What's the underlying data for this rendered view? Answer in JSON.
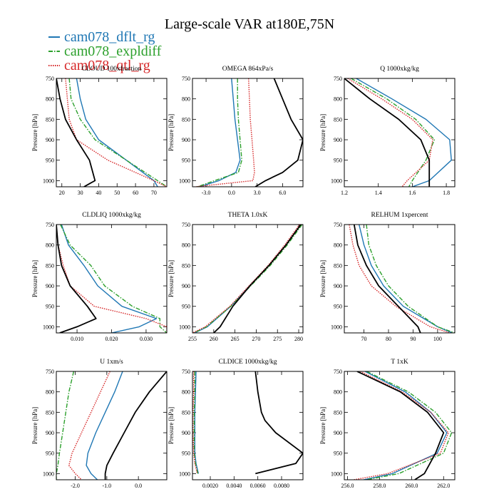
{
  "figure": {
    "title": "Large-scale VAR at180E,75N",
    "legend": [
      {
        "name": "cam078_dflt_rg",
        "color": "#1f77b4",
        "dash": "solid"
      },
      {
        "name": "cam078_expldiff",
        "color": "#2ca02c",
        "dash": "dashdot"
      },
      {
        "name": "cam078_qtl_rg",
        "color": "#d62728",
        "dash": "dotted"
      }
    ],
    "obs_color": "#000000"
  },
  "chart_data": [
    {
      "type": "line",
      "title": "CLOUD 100xfraction",
      "ylabel": "Pressure [hPa]",
      "xlim": [
        17,
        77
      ],
      "ylim": [
        750,
        1015
      ],
      "xticks": [
        20,
        30,
        40,
        50,
        60,
        70
      ],
      "xtick_labels": [
        "20",
        "30",
        "40",
        "50",
        "60",
        "70"
      ],
      "yticks": [
        750,
        800,
        850,
        900,
        950,
        1000
      ],
      "y": [
        750,
        800,
        850,
        900,
        950,
        1000,
        1015
      ],
      "series": [
        {
          "name": "cam078_dflt_rg",
          "x": [
            28,
            30,
            33,
            40,
            55,
            70,
            72
          ]
        },
        {
          "name": "cam078_expldiff",
          "x": [
            24,
            25,
            30,
            38,
            55,
            72,
            77
          ]
        },
        {
          "name": "cam078_qtl_rg",
          "x": [
            22,
            23,
            24,
            28,
            45,
            70,
            77
          ]
        },
        {
          "name": "obs",
          "x": [
            17,
            19,
            22,
            28,
            35,
            38,
            32
          ]
        }
      ]
    },
    {
      "type": "line",
      "title": "OMEGA 864xPa/s",
      "ylabel": "Pressure [hPa]",
      "xlim": [
        -4.6,
        8.4
      ],
      "ylim": [
        750,
        1015
      ],
      "xticks": [
        -3.0,
        0.0,
        3.0,
        6.0
      ],
      "xtick_labels": [
        "-3.0",
        "0.0",
        "3.0",
        "6.0"
      ],
      "yticks": [
        750,
        800,
        850,
        900,
        950,
        1000
      ],
      "y": [
        750,
        800,
        850,
        900,
        950,
        980,
        1000,
        1015
      ],
      "series": [
        {
          "name": "cam078_dflt_rg",
          "x": [
            0.0,
            0.2,
            0.4,
            0.7,
            1.0,
            0.5,
            -1.5,
            -3.8
          ]
        },
        {
          "name": "cam078_expldiff",
          "x": [
            0.7,
            0.7,
            0.8,
            1.0,
            1.2,
            0.8,
            -2.0,
            -4.0
          ]
        },
        {
          "name": "cam078_qtl_rg",
          "x": [
            2.0,
            2.1,
            2.2,
            2.4,
            2.6,
            2.7,
            2.5,
            -4.3
          ]
        },
        {
          "name": "obs",
          "x": [
            5.0,
            6.0,
            7.0,
            8.4,
            7.8,
            6.0,
            4.0,
            2.8
          ]
        }
      ]
    },
    {
      "type": "line",
      "title": "Q 1000xkg/kg",
      "ylabel": "Pressure [hPa]",
      "xlim": [
        1.2,
        1.85
      ],
      "ylim": [
        750,
        1015
      ],
      "xticks": [
        1.2,
        1.4,
        1.6,
        1.8
      ],
      "xtick_labels": [
        "1.2",
        "1.4",
        "1.6",
        "1.8"
      ],
      "yticks": [
        750,
        800,
        850,
        900,
        950,
        1000
      ],
      "y": [
        750,
        800,
        850,
        900,
        950,
        1000,
        1015
      ],
      "series": [
        {
          "name": "cam078_dflt_rg",
          "x": [
            1.27,
            1.48,
            1.68,
            1.82,
            1.83,
            1.7,
            1.6
          ]
        },
        {
          "name": "cam078_expldiff",
          "x": [
            1.24,
            1.45,
            1.62,
            1.73,
            1.68,
            1.6,
            1.58
          ]
        },
        {
          "name": "cam078_qtl_rg",
          "x": [
            1.22,
            1.42,
            1.6,
            1.72,
            1.7,
            1.57,
            1.54
          ]
        },
        {
          "name": "obs",
          "x": [
            1.2,
            1.35,
            1.52,
            1.65,
            1.7,
            1.7,
            1.7
          ]
        }
      ]
    },
    {
      "type": "line",
      "title": "CLDLIQ 1000xkg/kg",
      "ylabel": "Pressure [hPa]",
      "xlim": [
        0.004,
        0.036
      ],
      "ylim": [
        750,
        1015
      ],
      "xticks": [
        0.01,
        0.02,
        0.03
      ],
      "xtick_labels": [
        "0.010",
        "0.020",
        "0.030"
      ],
      "yticks": [
        750,
        800,
        850,
        900,
        950,
        1000
      ],
      "y": [
        750,
        800,
        850,
        900,
        950,
        980,
        1000,
        1015
      ],
      "series": [
        {
          "name": "cam078_dflt_rg",
          "x": [
            0.0055,
            0.0075,
            0.012,
            0.016,
            0.023,
            0.033,
            0.028,
            0.02
          ]
        },
        {
          "name": "cam078_expldiff",
          "x": [
            0.0052,
            0.008,
            0.014,
            0.018,
            0.026,
            0.034,
            0.034,
            0.036
          ]
        },
        {
          "name": "cam078_qtl_rg",
          "x": [
            0.004,
            0.0045,
            0.006,
            0.008,
            0.015,
            0.03,
            0.036,
            0.036
          ]
        },
        {
          "name": "obs",
          "x": [
            0.004,
            0.0045,
            0.0055,
            0.008,
            0.013,
            0.0155,
            0.01,
            0.005
          ]
        }
      ]
    },
    {
      "type": "line",
      "title": "THETA 1.0xK",
      "ylabel": "Pressure [hPa]",
      "xlim": [
        255,
        281
      ],
      "ylim": [
        750,
        1015
      ],
      "xticks": [
        255,
        260,
        265,
        270,
        275,
        280
      ],
      "xtick_labels": [
        "255",
        "260",
        "265",
        "270",
        "275",
        "280"
      ],
      "yticks": [
        750,
        800,
        850,
        900,
        950,
        1000
      ],
      "y": [
        750,
        800,
        850,
        900,
        950,
        1000,
        1015
      ],
      "series": [
        {
          "name": "cam078_dflt_rg",
          "x": [
            280.5,
            277,
            273,
            268.5,
            264,
            258.5,
            255.5
          ]
        },
        {
          "name": "cam078_expldiff",
          "x": [
            280.8,
            277.3,
            273.3,
            268.7,
            264,
            258.3,
            255.3
          ]
        },
        {
          "name": "cam078_qtl_rg",
          "x": [
            280.2,
            276.7,
            272.8,
            268.3,
            263.8,
            258,
            255
          ]
        },
        {
          "name": "obs",
          "x": [
            280.5,
            277,
            273,
            268.5,
            264.5,
            261.5,
            260
          ]
        }
      ]
    },
    {
      "type": "line",
      "title": "RELHUM 1xpercent",
      "ylabel": "Pressure [hPa]",
      "xlim": [
        62,
        107
      ],
      "ylim": [
        750,
        1015
      ],
      "xticks": [
        70,
        80,
        90,
        100
      ],
      "xtick_labels": [
        "70",
        "80",
        "90",
        "100"
      ],
      "yticks": [
        750,
        800,
        850,
        900,
        950,
        1000
      ],
      "y": [
        750,
        800,
        850,
        900,
        950,
        1000,
        1015
      ],
      "series": [
        {
          "name": "cam078_dflt_rg",
          "x": [
            68,
            70,
            73,
            78,
            86,
            100,
            106
          ]
        },
        {
          "name": "cam078_expldiff",
          "x": [
            71,
            72,
            75,
            80,
            88,
            100,
            107
          ]
        },
        {
          "name": "cam078_qtl_rg",
          "x": [
            64,
            65.5,
            68,
            73,
            83,
            97,
            105
          ]
        },
        {
          "name": "obs",
          "x": [
            66,
            67.5,
            71,
            76,
            84,
            92,
            93
          ]
        }
      ]
    },
    {
      "type": "line",
      "title": "U 1xm/s",
      "ylabel": "Pressure [hPa]",
      "xlim": [
        -2.6,
        0.9
      ],
      "ylim": [
        750,
        1015
      ],
      "xticks": [
        -2.0,
        -1.0,
        0.0
      ],
      "xtick_labels": [
        "-2.0",
        "-1.0",
        "0.0"
      ],
      "yticks": [
        750,
        800,
        850,
        900,
        950,
        1000
      ],
      "y": [
        750,
        800,
        850,
        900,
        950,
        980,
        1000,
        1015
      ],
      "series": [
        {
          "name": "cam078_dflt_rg",
          "x": [
            -0.5,
            -0.75,
            -1.05,
            -1.35,
            -1.6,
            -1.65,
            -1.5,
            -1.3
          ]
        },
        {
          "name": "cam078_expldiff",
          "x": [
            -2.05,
            -2.2,
            -2.3,
            -2.4,
            -2.5,
            -2.55,
            -2.6,
            -2.6
          ]
        },
        {
          "name": "cam078_qtl_rg",
          "x": [
            -0.9,
            -1.2,
            -1.5,
            -1.8,
            -2.1,
            -2.2,
            -2.0,
            -1.8
          ]
        },
        {
          "name": "obs",
          "x": [
            0.9,
            0.35,
            -0.1,
            -0.45,
            -0.8,
            -1.0,
            -1.05,
            -1.05
          ]
        }
      ]
    },
    {
      "type": "line",
      "title": "CLDICE 1000xkg/kg",
      "ylabel": "Pressure [hPa]",
      "xlim": [
        0.0005,
        0.0098
      ],
      "ylim": [
        750,
        1015
      ],
      "xticks": [
        0.002,
        0.004,
        0.006,
        0.008
      ],
      "xtick_labels": [
        "0.0020",
        "0.0040",
        "0.0060",
        "0.0080"
      ],
      "yticks": [
        750,
        800,
        850,
        900,
        950,
        1000
      ],
      "y": [
        750,
        800,
        850,
        870,
        900,
        950,
        975,
        1000
      ],
      "series": [
        {
          "name": "cam078_dflt_rg",
          "x": [
            0.0008,
            0.00075,
            0.0007,
            0.0007,
            0.0007,
            0.0007,
            0.0008,
            0.001
          ]
        },
        {
          "name": "cam078_expldiff",
          "x": [
            0.0007,
            0.0007,
            0.00065,
            0.00065,
            0.00065,
            0.00065,
            0.00075,
            0.00095
          ]
        },
        {
          "name": "cam078_qtl_rg",
          "x": [
            0.0006,
            0.0006,
            0.00055,
            0.00055,
            0.00055,
            0.0006,
            0.0007,
            0.0009
          ]
        },
        {
          "name": "obs",
          "x": [
            0.0058,
            0.006,
            0.0063,
            0.0066,
            0.0075,
            0.0098,
            0.0092,
            0.0058
          ]
        }
      ]
    },
    {
      "type": "line",
      "title": "T 1xK",
      "ylabel": "Pressure [hPa]",
      "xlim": [
        255.8,
        262.7
      ],
      "ylim": [
        750,
        1015
      ],
      "xticks": [
        256,
        258,
        260,
        262
      ],
      "xtick_labels": [
        "256.0",
        "258.0",
        "260.0",
        "262.0"
      ],
      "yticks": [
        750,
        800,
        850,
        900,
        950,
        1000
      ],
      "y": [
        750,
        800,
        850,
        900,
        950,
        1000,
        1015
      ],
      "series": [
        {
          "name": "cam078_dflt_rg",
          "x": [
            257.1,
            259.6,
            261.2,
            262.2,
            261.6,
            258.8,
            257.0
          ]
        },
        {
          "name": "cam078_expldiff",
          "x": [
            257.2,
            259.8,
            261.5,
            262.5,
            262.0,
            259.2,
            257.2
          ]
        },
        {
          "name": "cam078_qtl_rg",
          "x": [
            256.8,
            259.4,
            261.2,
            262.3,
            261.8,
            258.5,
            256.4
          ]
        },
        {
          "name": "obs",
          "x": [
            256.6,
            259.3,
            261.0,
            262.0,
            261.5,
            260.8,
            260.2
          ]
        }
      ]
    }
  ]
}
